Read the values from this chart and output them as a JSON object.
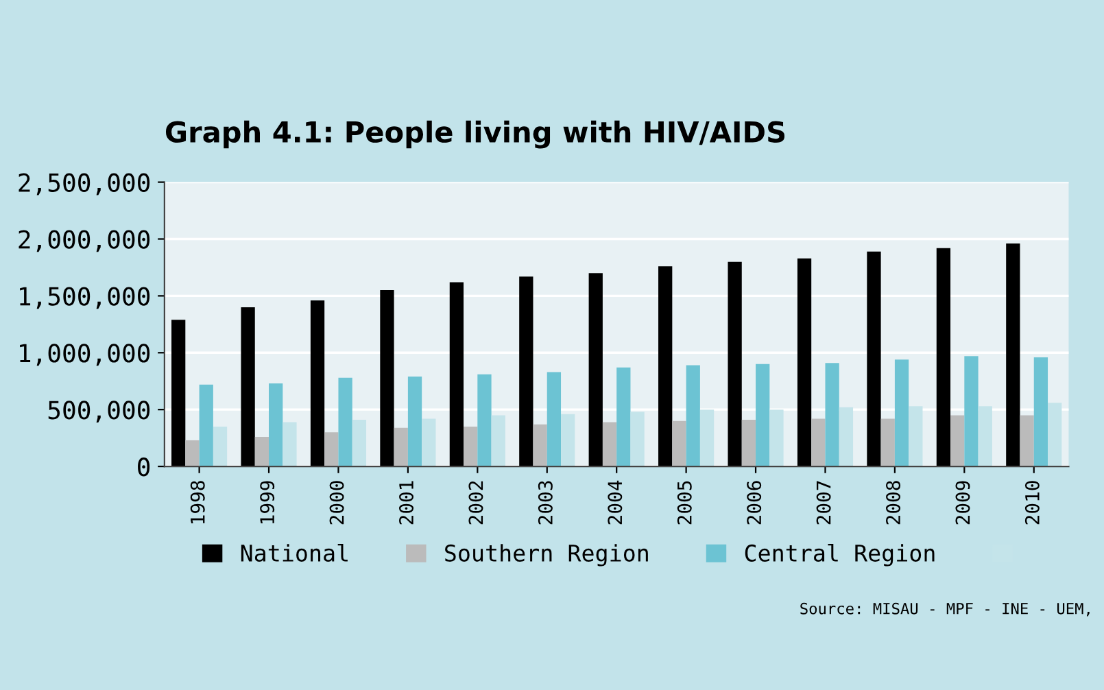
{
  "chart_data": {
    "type": "bar",
    "title": "Graph 4.1: People living with HIV/AIDS",
    "categories": [
      "1998",
      "1999",
      "2000",
      "2001",
      "2002",
      "2003",
      "2004",
      "2005",
      "2006",
      "2007",
      "2008",
      "2009",
      "2010"
    ],
    "series": [
      {
        "name": "National",
        "color": "#000000",
        "values": [
          1290000,
          1400000,
          1460000,
          1550000,
          1620000,
          1670000,
          1700000,
          1760000,
          1800000,
          1830000,
          1890000,
          1920000,
          1960000
        ]
      },
      {
        "name": "Southern Region",
        "color": "#bbbbbb",
        "values": [
          230000,
          260000,
          300000,
          340000,
          350000,
          370000,
          390000,
          400000,
          410000,
          420000,
          420000,
          450000,
          450000
        ]
      },
      {
        "name": "Central Region",
        "color": "#6cc3d3",
        "values": [
          720000,
          730000,
          780000,
          790000,
          810000,
          830000,
          870000,
          890000,
          900000,
          910000,
          940000,
          970000,
          960000
        ]
      },
      {
        "color": "#c4e4ea",
        "values": [
          350000,
          390000,
          410000,
          420000,
          450000,
          460000,
          480000,
          500000,
          500000,
          520000,
          530000,
          530000,
          560000
        ]
      }
    ],
    "ylim": [
      0,
      2500000
    ],
    "yticks": [
      {
        "value": 0,
        "label": "0"
      },
      {
        "value": 500000,
        "label": "500,000"
      },
      {
        "value": 1000000,
        "label": "1,000,000"
      },
      {
        "value": 1500000,
        "label": "1,500,000"
      },
      {
        "value": 2000000,
        "label": "2,000,000"
      },
      {
        "value": 2500000,
        "label": "2,500,000"
      }
    ],
    "grid": "y",
    "legend": "bottom",
    "annotations": [
      "Source: MISAU - MPF - INE - UEM,"
    ]
  }
}
